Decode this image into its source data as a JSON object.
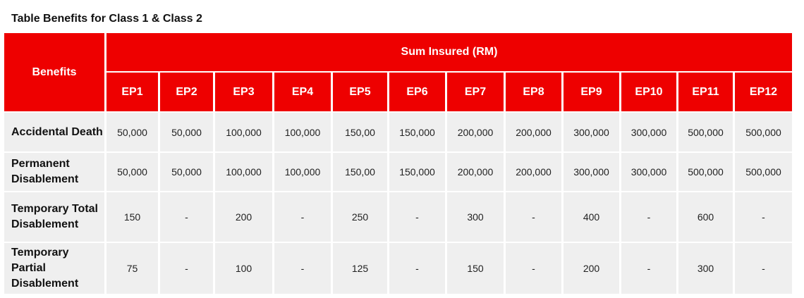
{
  "title": "Table Benefits for Class 1 & Class 2",
  "table": {
    "corner": "Benefits",
    "group_header": "Sum Insured (RM)",
    "columns": [
      "EP1",
      "EP2",
      "EP3",
      "EP4",
      "EP5",
      "EP6",
      "EP7",
      "EP8",
      "EP9",
      "EP10",
      "EP11",
      "EP12"
    ],
    "rows": [
      {
        "label": "Accidental Death",
        "cells": [
          "50,000",
          "50,000",
          "100,000",
          "100,000",
          "150,00",
          "150,000",
          "200,000",
          "200,000",
          "300,000",
          "300,000",
          "500,000",
          "500,000"
        ]
      },
      {
        "label": "Permanent Disablement",
        "cells": [
          "50,000",
          "50,000",
          "100,000",
          "100,000",
          "150,00",
          "150,000",
          "200,000",
          "200,000",
          "300,000",
          "300,000",
          "500,000",
          "500,000"
        ]
      },
      {
        "label": "Temporary Total Disablement",
        "cells": [
          "150",
          "-",
          "200",
          "-",
          "250",
          "-",
          "300",
          "-",
          "400",
          "-",
          "600",
          "-"
        ]
      },
      {
        "label": "Temporary Partial Disablement",
        "cells": [
          "75",
          "-",
          "100",
          "-",
          "125",
          "-",
          "150",
          "-",
          "200",
          "-",
          "300",
          "-"
        ]
      }
    ]
  }
}
